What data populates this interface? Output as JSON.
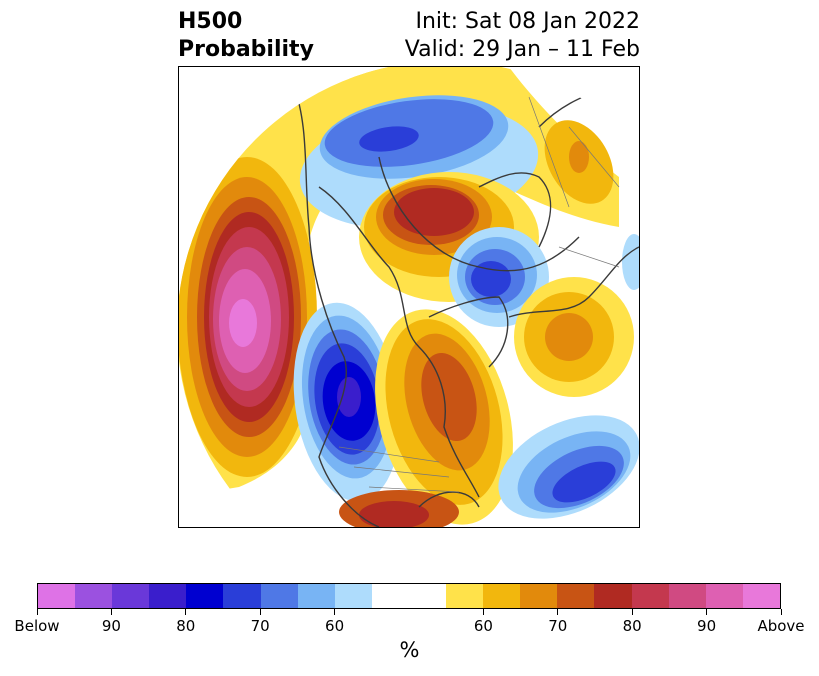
{
  "title": {
    "left_line1": "H500",
    "left_line2": "Probability",
    "right_line1": "Init: Sat 08 Jan 2022",
    "right_line2": "Valid: 29 Jan – 11 Feb"
  },
  "colorbar": {
    "colors": [
      "#de72e6",
      "#9b51e0",
      "#6a38d9",
      "#3a1ecc",
      "#0000d0",
      "#2a3ed8",
      "#4f78e6",
      "#78b4f4",
      "#aedcfc",
      "#ffffff",
      "#ffffff",
      "#ffe24a",
      "#f2b70d",
      "#e28a0c",
      "#c85414",
      "#b02a22",
      "#c4384e",
      "#d04a82",
      "#de60b2",
      "#e878da"
    ],
    "tick_labels": [
      {
        "label": "Below",
        "index": 0
      },
      {
        "label": "90",
        "index": 2
      },
      {
        "label": "80",
        "index": 4
      },
      {
        "label": "70",
        "index": 6
      },
      {
        "label": "60",
        "index": 8
      },
      {
        "label": "60",
        "index": 12
      },
      {
        "label": "70",
        "index": 14
      },
      {
        "label": "80",
        "index": 16
      },
      {
        "label": "90",
        "index": 18
      },
      {
        "label": "Above",
        "index": 20
      }
    ],
    "unit": "%"
  }
}
